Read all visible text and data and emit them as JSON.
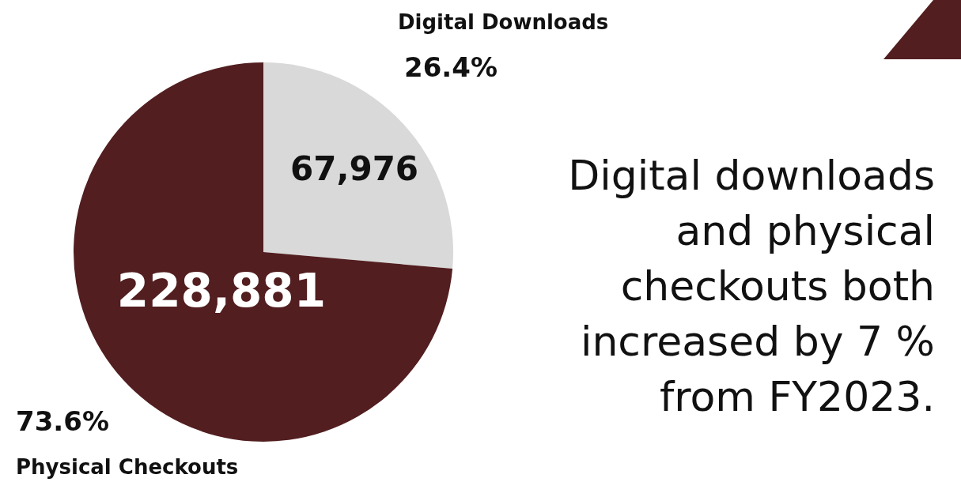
{
  "chart_data": {
    "type": "pie",
    "title": "Digital downloads and physical checkouts both increased by 7 % from FY2023.",
    "categories": [
      "Digital Downloads",
      "Physical Checkouts"
    ],
    "values": [
      26.4,
      73.6
    ],
    "colors": [
      "#d9d9d9",
      "#521e20"
    ],
    "value_labels": [
      "26.4%",
      "73.6%"
    ],
    "annotations": [
      "67,976",
      "228,881"
    ]
  }
}
